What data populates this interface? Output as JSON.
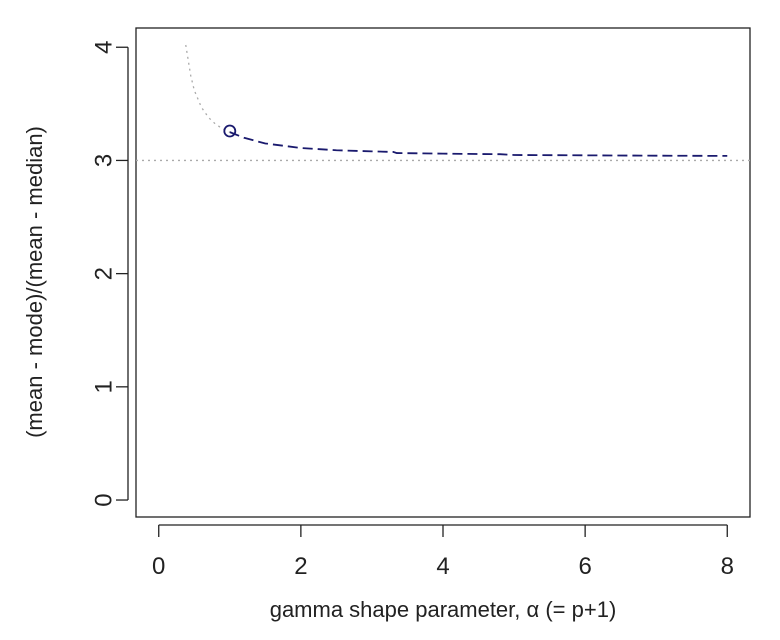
{
  "chart_data": {
    "type": "line",
    "xlabel": "gamma shape parameter, α (= p+1)",
    "ylabel": "(mean - mode)/(mean - median)",
    "xlim": [
      -0.32,
      8.32
    ],
    "ylim": [
      -0.15,
      4.17
    ],
    "x_ticks": [
      0,
      2,
      4,
      6,
      8
    ],
    "y_ticks": [
      0,
      1,
      2,
      3,
      4
    ],
    "x_tick_labels": [
      "0",
      "2",
      "4",
      "6",
      "8"
    ],
    "y_tick_labels": [
      "0",
      "1",
      "2",
      "3",
      "4"
    ],
    "grid": false,
    "series": [
      {
        "style": "dotted",
        "color": "#aaaaaa",
        "x": [
          0.38,
          0.45,
          0.5,
          0.6,
          0.7,
          0.8,
          0.9,
          1.0
        ],
        "y": [
          4.02,
          3.75,
          3.62,
          3.47,
          3.38,
          3.32,
          3.28,
          3.25
        ]
      },
      {
        "style": "dashed",
        "color": "#1a1a6e",
        "x": [
          1.0,
          1.2,
          1.5,
          2.0,
          2.5,
          3.0,
          3.3,
          3.35,
          4.0,
          4.8,
          5.0,
          6.0,
          7.0,
          8.0
        ],
        "y": [
          3.25,
          3.2,
          3.15,
          3.11,
          3.09,
          3.08,
          3.075,
          3.065,
          3.06,
          3.055,
          3.048,
          3.045,
          3.042,
          3.04
        ]
      },
      {
        "style": "dotted",
        "color": "#aaaaaa",
        "x": [
          -0.32,
          8.32
        ],
        "y": [
          3.0,
          3.0
        ]
      }
    ],
    "points": [
      {
        "x": 1.0,
        "y": 3.26,
        "marker": "circle-open",
        "color": "#1a1a6e"
      }
    ]
  }
}
